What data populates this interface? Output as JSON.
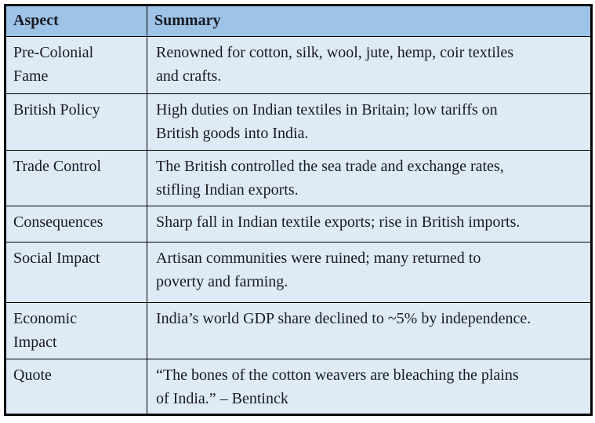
{
  "table": {
    "columns": [
      {
        "label": "Aspect"
      },
      {
        "label": "Summary"
      }
    ],
    "rows": [
      {
        "aspect": "Pre-Colonial\nFame",
        "summary": "Renowned for cotton, silk, wool, jute, hemp, coir textiles\nand crafts."
      },
      {
        "aspect": "British Policy",
        "summary": "High duties on Indian textiles in Britain; low tariffs on\nBritish goods into India."
      },
      {
        "aspect": "Trade Control",
        "summary": "The British controlled the sea trade and exchange rates,\nstifling Indian exports."
      },
      {
        "aspect": "Consequences",
        "summary": "Sharp fall in Indian textile exports; rise in British imports."
      },
      {
        "aspect": "Social Impact",
        "summary": "Artisan communities were ruined; many returned to\npoverty and farming."
      },
      {
        "aspect": "Economic\nImpact",
        "summary": "India’s world GDP share declined to ~5% by independence."
      },
      {
        "aspect": "Quote",
        "summary": "“The bones of the cotton weavers are bleaching the plains\nof India.” – Bentinck"
      }
    ],
    "colors": {
      "header_bg": "#9dc3e6",
      "row_bg": "#deeaf6",
      "border": "#000000",
      "text": "#1a1a22"
    }
  }
}
